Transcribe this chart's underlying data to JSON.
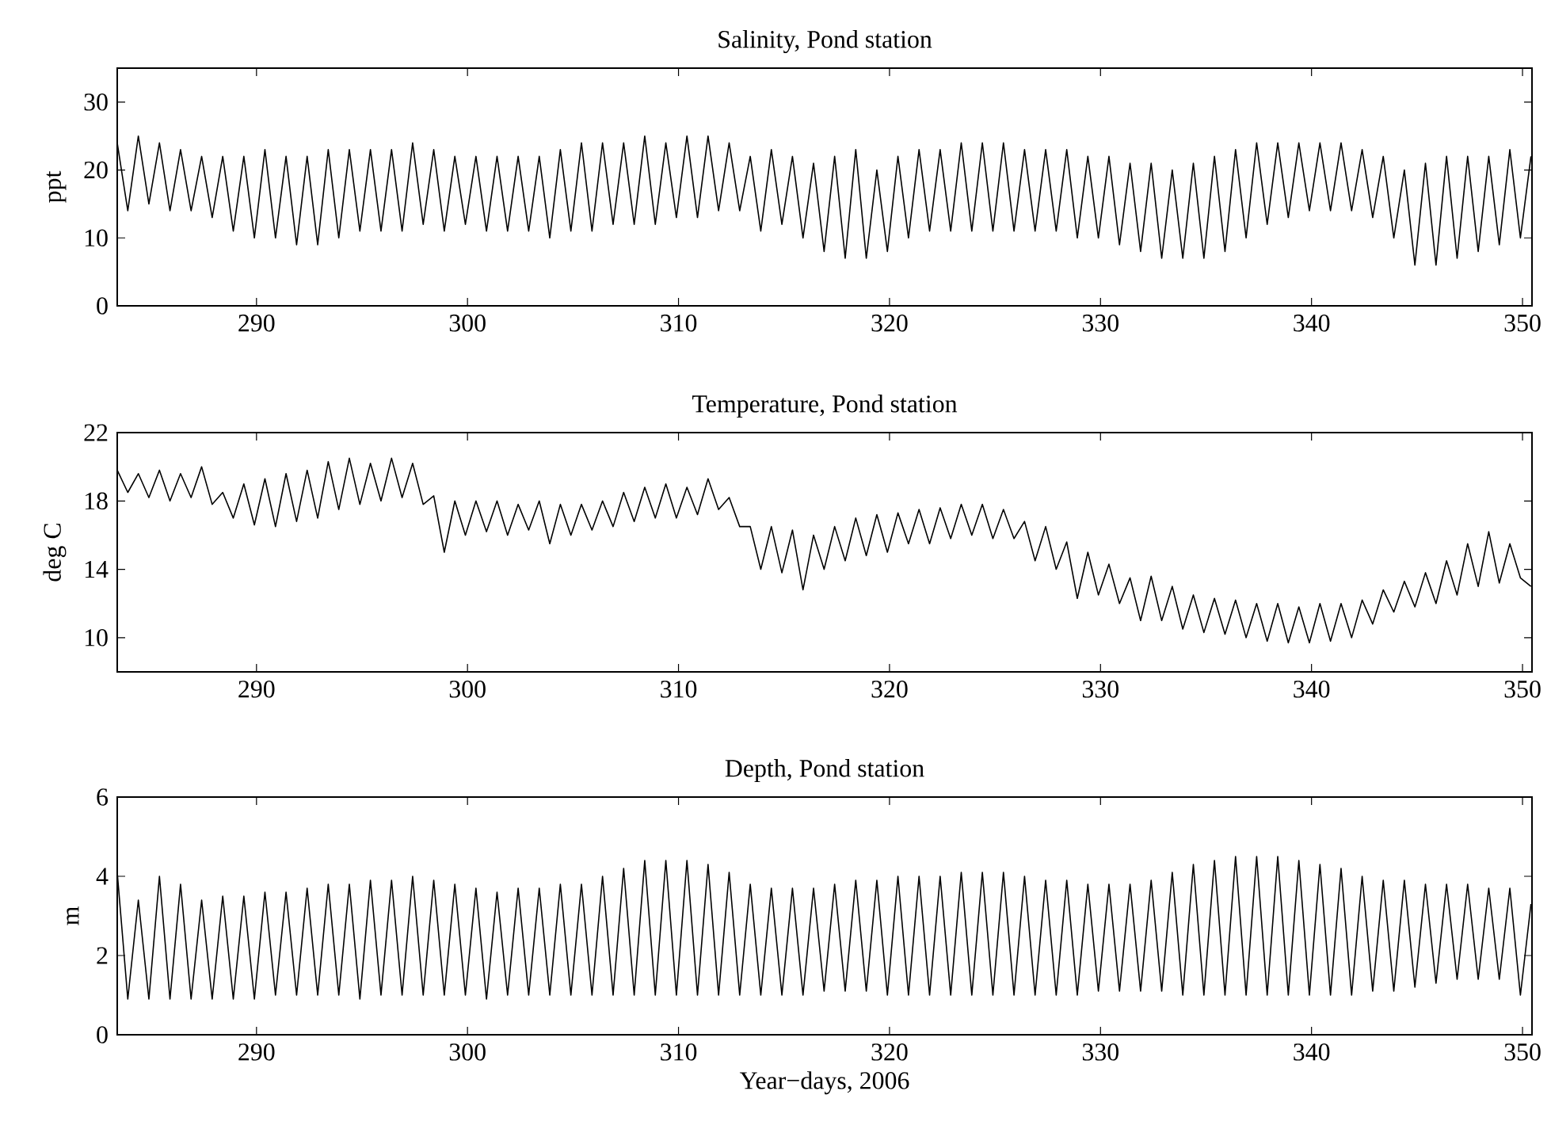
{
  "chart_data": [
    {
      "type": "line",
      "title": "Salinity, Pond station",
      "ylabel": "ppt",
      "color": "#000000",
      "xlim": [
        283.4,
        350.45
      ],
      "ylim": [
        0,
        35
      ],
      "xticks": [
        290,
        300,
        310,
        320,
        330,
        340,
        350
      ],
      "yticks": [
        0,
        10,
        20,
        30
      ],
      "x": [
        283.4,
        283.9,
        284.4,
        284.9,
        285.4,
        285.9,
        286.4,
        286.9,
        287.4,
        287.9,
        288.4,
        288.9,
        289.4,
        289.9,
        290.4,
        290.9,
        291.4,
        291.9,
        292.4,
        292.9,
        293.4,
        293.9,
        294.4,
        294.9,
        295.4,
        295.9,
        296.4,
        296.9,
        297.4,
        297.9,
        298.4,
        298.9,
        299.4,
        299.9,
        300.4,
        300.9,
        301.4,
        301.9,
        302.4,
        302.9,
        303.4,
        303.9,
        304.4,
        304.9,
        305.4,
        305.9,
        306.4,
        306.9,
        307.4,
        307.9,
        308.4,
        308.9,
        309.4,
        309.9,
        310.4,
        310.9,
        311.4,
        311.9,
        312.4,
        312.9,
        313.4,
        313.9,
        314.4,
        314.9,
        315.4,
        315.9,
        316.4,
        316.9,
        317.4,
        317.9,
        318.4,
        318.9,
        319.4,
        319.9,
        320.4,
        320.9,
        321.4,
        321.9,
        322.4,
        322.9,
        323.4,
        323.9,
        324.4,
        324.9,
        325.4,
        325.9,
        326.4,
        326.9,
        327.4,
        327.9,
        328.4,
        328.9,
        329.4,
        329.9,
        330.4,
        330.9,
        331.4,
        331.9,
        332.4,
        332.9,
        333.4,
        333.9,
        334.4,
        334.9,
        335.4,
        335.9,
        336.4,
        336.9,
        337.4,
        337.9,
        338.4,
        338.9,
        339.4,
        339.9,
        340.4,
        340.9,
        341.4,
        341.9,
        342.4,
        342.9,
        343.4,
        343.9,
        344.4,
        344.9,
        345.4,
        345.9,
        346.4,
        346.9,
        347.4,
        347.9,
        348.4,
        348.9,
        349.4,
        349.9,
        350.4
      ],
      "values": [
        24,
        14,
        25,
        15,
        24,
        14,
        23,
        14,
        22,
        13,
        22,
        11,
        22,
        10,
        23,
        10,
        22,
        9,
        22,
        9,
        23,
        10,
        23,
        11,
        23,
        11,
        23,
        11,
        24,
        12,
        23,
        11,
        22,
        12,
        22,
        11,
        22,
        11,
        22,
        11,
        22,
        10,
        23,
        11,
        24,
        11,
        24,
        12,
        24,
        12,
        25,
        12,
        24,
        13,
        25,
        13,
        25,
        14,
        24,
        14,
        22,
        11,
        23,
        12,
        22,
        10,
        21,
        8,
        22,
        7,
        23,
        7,
        20,
        8,
        22,
        10,
        23,
        11,
        23,
        11,
        24,
        11,
        24,
        11,
        24,
        11,
        23,
        11,
        23,
        11,
        23,
        10,
        22,
        10,
        22,
        9,
        21,
        8,
        21,
        7,
        20,
        7,
        21,
        7,
        22,
        8,
        23,
        10,
        24,
        12,
        24,
        13,
        24,
        14,
        24,
        14,
        24,
        14,
        23,
        13,
        22,
        10,
        20,
        6,
        21,
        6,
        22,
        7,
        22,
        8,
        22,
        9,
        23,
        10,
        22
      ]
    },
    {
      "type": "line",
      "title": "Temperature, Pond station",
      "ylabel": "deg C",
      "color": "#000000",
      "xlim": [
        283.4,
        350.45
      ],
      "ylim": [
        8,
        22
      ],
      "xticks": [
        290,
        300,
        310,
        320,
        330,
        340,
        350
      ],
      "yticks": [
        10,
        14,
        18,
        22
      ],
      "x": [
        283.4,
        283.9,
        284.4,
        284.9,
        285.4,
        285.9,
        286.4,
        286.9,
        287.4,
        287.9,
        288.4,
        288.9,
        289.4,
        289.9,
        290.4,
        290.9,
        291.4,
        291.9,
        292.4,
        292.9,
        293.4,
        293.9,
        294.4,
        294.9,
        295.4,
        295.9,
        296.4,
        296.9,
        297.4,
        297.9,
        298.4,
        298.9,
        299.4,
        299.9,
        300.4,
        300.9,
        301.4,
        301.9,
        302.4,
        302.9,
        303.4,
        303.9,
        304.4,
        304.9,
        305.4,
        305.9,
        306.4,
        306.9,
        307.4,
        307.9,
        308.4,
        308.9,
        309.4,
        309.9,
        310.4,
        310.9,
        311.4,
        311.9,
        312.4,
        312.9,
        313.4,
        313.9,
        314.4,
        314.9,
        315.4,
        315.9,
        316.4,
        316.9,
        317.4,
        317.9,
        318.4,
        318.9,
        319.4,
        319.9,
        320.4,
        320.9,
        321.4,
        321.9,
        322.4,
        322.9,
        323.4,
        323.9,
        324.4,
        324.9,
        325.4,
        325.9,
        326.4,
        326.9,
        327.4,
        327.9,
        328.4,
        328.9,
        329.4,
        329.9,
        330.4,
        330.9,
        331.4,
        331.9,
        332.4,
        332.9,
        333.4,
        333.9,
        334.4,
        334.9,
        335.4,
        335.9,
        336.4,
        336.9,
        337.4,
        337.9,
        338.4,
        338.9,
        339.4,
        339.9,
        340.4,
        340.9,
        341.4,
        341.9,
        342.4,
        342.9,
        343.4,
        343.9,
        344.4,
        344.9,
        345.4,
        345.9,
        346.4,
        346.9,
        347.4,
        347.9,
        348.4,
        348.9,
        349.4,
        349.9,
        350.4
      ],
      "values": [
        19.8,
        18.5,
        19.6,
        18.2,
        19.8,
        18,
        19.6,
        18.2,
        20,
        17.8,
        18.5,
        17,
        19,
        16.6,
        19.3,
        16.5,
        19.6,
        16.8,
        19.8,
        17,
        20.3,
        17.5,
        20.5,
        17.8,
        20.2,
        18,
        20.5,
        18.2,
        20.2,
        17.8,
        18.3,
        15,
        18,
        16,
        18,
        16.2,
        18,
        16,
        17.8,
        16.3,
        18,
        15.5,
        17.8,
        16,
        17.8,
        16.3,
        18,
        16.5,
        18.5,
        16.8,
        18.8,
        17,
        19,
        17,
        18.8,
        17.2,
        19.3,
        17.5,
        18.2,
        16.5,
        16.5,
        14,
        16.5,
        13.8,
        16.3,
        12.8,
        16,
        14,
        16.5,
        14.5,
        17,
        14.8,
        17.2,
        15,
        17.3,
        15.5,
        17.5,
        15.5,
        17.6,
        15.8,
        17.8,
        16,
        17.8,
        15.8,
        17.5,
        15.8,
        16.8,
        14.5,
        16.5,
        14,
        15.6,
        12.3,
        15,
        12.5,
        14.3,
        12,
        13.5,
        11,
        13.6,
        11,
        13,
        10.5,
        12.5,
        10.3,
        12.3,
        10.2,
        12.2,
        10,
        12,
        9.8,
        12,
        9.7,
        11.8,
        9.7,
        12,
        9.8,
        12,
        10,
        12.2,
        10.8,
        12.8,
        11.5,
        13.3,
        11.8,
        13.8,
        12,
        14.5,
        12.5,
        15.5,
        13,
        16.2,
        13.2,
        15.5,
        13.5,
        13
      ]
    },
    {
      "type": "line",
      "title": "Depth, Pond station",
      "ylabel": "m",
      "xlabel": "Year−days, 2006",
      "color": "#000000",
      "xlim": [
        283.4,
        350.45
      ],
      "ylim": [
        0,
        6
      ],
      "xticks": [
        290,
        300,
        310,
        320,
        330,
        340,
        350
      ],
      "yticks": [
        0,
        2,
        4,
        6
      ],
      "x": [
        283.4,
        283.9,
        284.4,
        284.9,
        285.4,
        285.9,
        286.4,
        286.9,
        287.4,
        287.9,
        288.4,
        288.9,
        289.4,
        289.9,
        290.4,
        290.9,
        291.4,
        291.9,
        292.4,
        292.9,
        293.4,
        293.9,
        294.4,
        294.9,
        295.4,
        295.9,
        296.4,
        296.9,
        297.4,
        297.9,
        298.4,
        298.9,
        299.4,
        299.9,
        300.4,
        300.9,
        301.4,
        301.9,
        302.4,
        302.9,
        303.4,
        303.9,
        304.4,
        304.9,
        305.4,
        305.9,
        306.4,
        306.9,
        307.4,
        307.9,
        308.4,
        308.9,
        309.4,
        309.9,
        310.4,
        310.9,
        311.4,
        311.9,
        312.4,
        312.9,
        313.4,
        313.9,
        314.4,
        314.9,
        315.4,
        315.9,
        316.4,
        316.9,
        317.4,
        317.9,
        318.4,
        318.9,
        319.4,
        319.9,
        320.4,
        320.9,
        321.4,
        321.9,
        322.4,
        322.9,
        323.4,
        323.9,
        324.4,
        324.9,
        325.4,
        325.9,
        326.4,
        326.9,
        327.4,
        327.9,
        328.4,
        328.9,
        329.4,
        329.9,
        330.4,
        330.9,
        331.4,
        331.9,
        332.4,
        332.9,
        333.4,
        333.9,
        334.4,
        334.9,
        335.4,
        335.9,
        336.4,
        336.9,
        337.4,
        337.9,
        338.4,
        338.9,
        339.4,
        339.9,
        340.4,
        340.9,
        341.4,
        341.9,
        342.4,
        342.9,
        343.4,
        343.9,
        344.4,
        344.9,
        345.4,
        345.9,
        346.4,
        346.9,
        347.4,
        347.9,
        348.4,
        348.9,
        349.4,
        349.9,
        350.4
      ],
      "values": [
        4.1,
        0.9,
        3.4,
        0.9,
        4.0,
        0.9,
        3.8,
        0.9,
        3.4,
        0.9,
        3.5,
        0.9,
        3.5,
        0.9,
        3.6,
        1.0,
        3.6,
        1.0,
        3.7,
        1.0,
        3.8,
        1.0,
        3.8,
        0.9,
        3.9,
        1.0,
        3.9,
        1.0,
        4.0,
        1.0,
        3.9,
        1.0,
        3.8,
        1.0,
        3.7,
        0.9,
        3.6,
        1.0,
        3.7,
        1.0,
        3.7,
        1.0,
        3.8,
        1.0,
        3.8,
        1.0,
        4.0,
        1.0,
        4.2,
        1.0,
        4.4,
        1.0,
        4.4,
        1.0,
        4.4,
        1.0,
        4.3,
        1.0,
        4.1,
        1.0,
        3.8,
        1.0,
        3.7,
        1.0,
        3.7,
        1.0,
        3.7,
        1.1,
        3.8,
        1.1,
        3.9,
        1.1,
        3.9,
        1.0,
        4.0,
        1.0,
        4.0,
        1.0,
        4.0,
        1.0,
        4.1,
        1.0,
        4.1,
        1.0,
        4.1,
        1.0,
        4.0,
        1.0,
        3.9,
        1.0,
        3.9,
        1.0,
        3.8,
        1.1,
        3.8,
        1.1,
        3.8,
        1.1,
        3.9,
        1.1,
        4.1,
        1.0,
        4.3,
        1.0,
        4.4,
        1.0,
        4.5,
        1.0,
        4.5,
        1.0,
        4.5,
        1.0,
        4.4,
        1.0,
        4.3,
        1.0,
        4.2,
        1.0,
        4.0,
        1.1,
        3.9,
        1.1,
        3.9,
        1.2,
        3.8,
        1.3,
        3.8,
        1.4,
        3.8,
        1.4,
        3.7,
        1.4,
        3.7,
        1.0,
        3.3
      ]
    }
  ]
}
